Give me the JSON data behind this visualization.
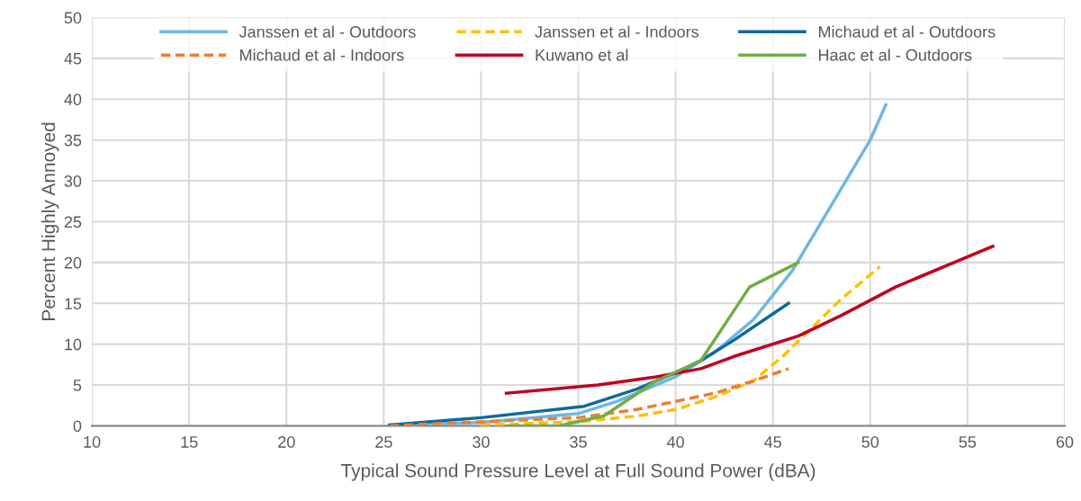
{
  "chart_data": {
    "type": "line",
    "xlabel": "Typical Sound Pressure Level at Full Sound Power (dBA)",
    "ylabel": "Percent Highly Annoyed",
    "xlim": [
      10,
      60
    ],
    "xticks": [
      10,
      15,
      20,
      25,
      30,
      35,
      40,
      45,
      50,
      55,
      60
    ],
    "ylim": [
      0,
      50
    ],
    "yticks": [
      0,
      5,
      10,
      15,
      20,
      25,
      30,
      35,
      40,
      45,
      50
    ],
    "grid": true,
    "legend": "top",
    "marker": "none",
    "series": [
      {
        "name": "Janssen et al - Outdoors",
        "color": "#6fb6e6",
        "line_style": "solid",
        "x": [
          25.3,
          30,
          35,
          37,
          40,
          42,
          44,
          46,
          48,
          50,
          50.8
        ],
        "values": [
          0.1,
          0.4,
          1.5,
          3,
          6,
          9,
          13,
          19,
          27,
          35,
          39.3
        ]
      },
      {
        "name": "Janssen et al - Indoors",
        "color": "#ffc000",
        "line_style": "dashed",
        "x": [
          30,
          35,
          38,
          40,
          42,
          44,
          45.5,
          47,
          48.5,
          50.5
        ],
        "values": [
          0.1,
          0.5,
          1.2,
          2,
          3.5,
          5.5,
          8.5,
          12,
          15.5,
          19.5
        ]
      },
      {
        "name": "Michaud et al - Outdoors",
        "color": "#0e6a9b",
        "line_style": "solid",
        "x": [
          25.3,
          30,
          35.3,
          38,
          40,
          41.3,
          43,
          45.8
        ],
        "values": [
          0.1,
          1,
          2.4,
          4.5,
          6.5,
          8,
          10.5,
          15
        ]
      },
      {
        "name": "Michaud et al - Indoors",
        "color": "#ed7d31",
        "line_style": "dashed",
        "x": [
          25.3,
          30,
          35,
          38,
          40,
          42,
          44,
          45.8
        ],
        "values": [
          0,
          0.5,
          1,
          2,
          3,
          4,
          5.5,
          7
        ]
      },
      {
        "name": "Kuwano et al",
        "color": "#c00020",
        "line_style": "solid",
        "x": [
          31.3,
          36,
          39,
          41.3,
          43,
          46.3,
          48.5,
          51.3,
          56.3
        ],
        "values": [
          4,
          5,
          6,
          7,
          8.5,
          11,
          13.5,
          17,
          22
        ]
      },
      {
        "name": "Haac et al - Outdoors",
        "color": "#70ad47",
        "line_style": "solid",
        "x": [
          31.3,
          34,
          36.3,
          39,
          41.3,
          43.8,
          46.3
        ],
        "values": [
          0,
          0,
          1.2,
          5.5,
          8,
          17,
          20
        ]
      }
    ]
  }
}
